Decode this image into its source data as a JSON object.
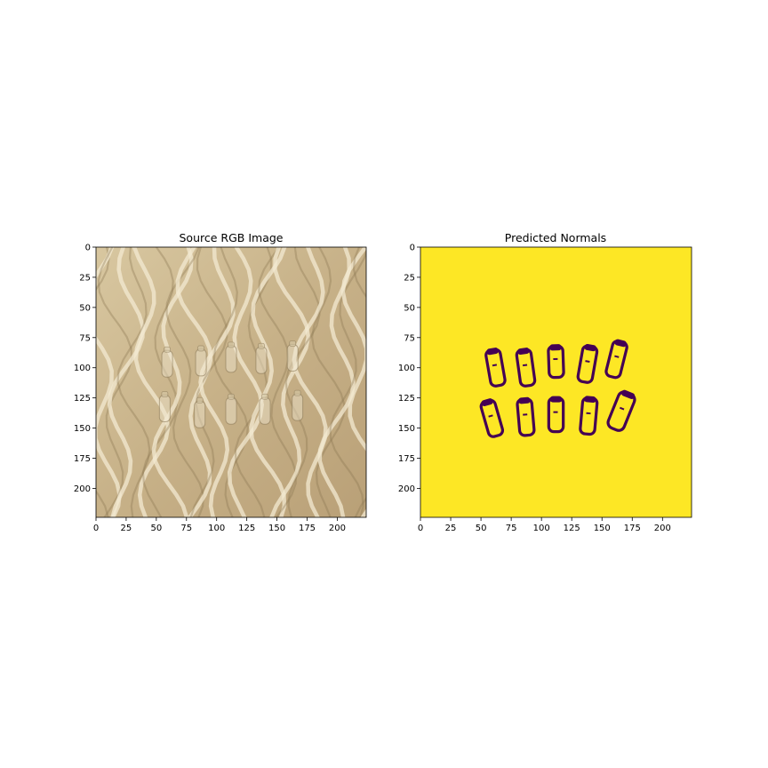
{
  "chart_data": [
    {
      "type": "heatmap",
      "title": "Source RGB Image",
      "image_description_kind": "photo-realistic glossy beige/gold surface with wavy bands and ten small transparent bottles arranged in two rows of five",
      "xlim": [
        0,
        224
      ],
      "ylim": [
        224,
        0
      ],
      "xticks": [
        0,
        25,
        50,
        75,
        100,
        125,
        150,
        175,
        200
      ],
      "yticks": [
        0,
        25,
        50,
        75,
        100,
        125,
        150,
        175,
        200
      ],
      "colors": {
        "base": "#c9b48c",
        "light": "#f3ead2",
        "dark": "#8a7550"
      },
      "objects": [
        {
          "x": 59,
          "y": 96
        },
        {
          "x": 87,
          "y": 95
        },
        {
          "x": 112,
          "y": 92
        },
        {
          "x": 137,
          "y": 93
        },
        {
          "x": 163,
          "y": 91
        },
        {
          "x": 57,
          "y": 133
        },
        {
          "x": 86,
          "y": 138
        },
        {
          "x": 112,
          "y": 135
        },
        {
          "x": 140,
          "y": 135
        },
        {
          "x": 167,
          "y": 132
        }
      ]
    },
    {
      "type": "heatmap",
      "title": "Predicted Normals",
      "xlim": [
        0,
        224
      ],
      "ylim": [
        224,
        0
      ],
      "xticks": [
        0,
        25,
        50,
        75,
        100,
        125,
        150,
        175,
        200
      ],
      "yticks": [
        0,
        25,
        50,
        75,
        100,
        125,
        150,
        175,
        200
      ],
      "colors": {
        "background": "#fde725",
        "outline": "#440154"
      },
      "objects": [
        {
          "x": 62,
          "y": 100,
          "rx": 6,
          "ry": 15,
          "tilt": -10
        },
        {
          "x": 87,
          "y": 100,
          "rx": 6,
          "ry": 15,
          "tilt": -8
        },
        {
          "x": 112,
          "y": 95,
          "rx": 6,
          "ry": 13,
          "tilt": -2
        },
        {
          "x": 138,
          "y": 97,
          "rx": 6,
          "ry": 15,
          "tilt": 10
        },
        {
          "x": 162,
          "y": 93,
          "rx": 6,
          "ry": 15,
          "tilt": 14
        },
        {
          "x": 59,
          "y": 142,
          "rx": 6,
          "ry": 15,
          "tilt": -16
        },
        {
          "x": 87,
          "y": 141,
          "rx": 6,
          "ry": 15,
          "tilt": -5
        },
        {
          "x": 112,
          "y": 139,
          "rx": 6,
          "ry": 14,
          "tilt": 0
        },
        {
          "x": 139,
          "y": 140,
          "rx": 6,
          "ry": 15,
          "tilt": 5
        },
        {
          "x": 166,
          "y": 136,
          "rx": 7,
          "ry": 16,
          "tilt": 22
        }
      ]
    }
  ]
}
